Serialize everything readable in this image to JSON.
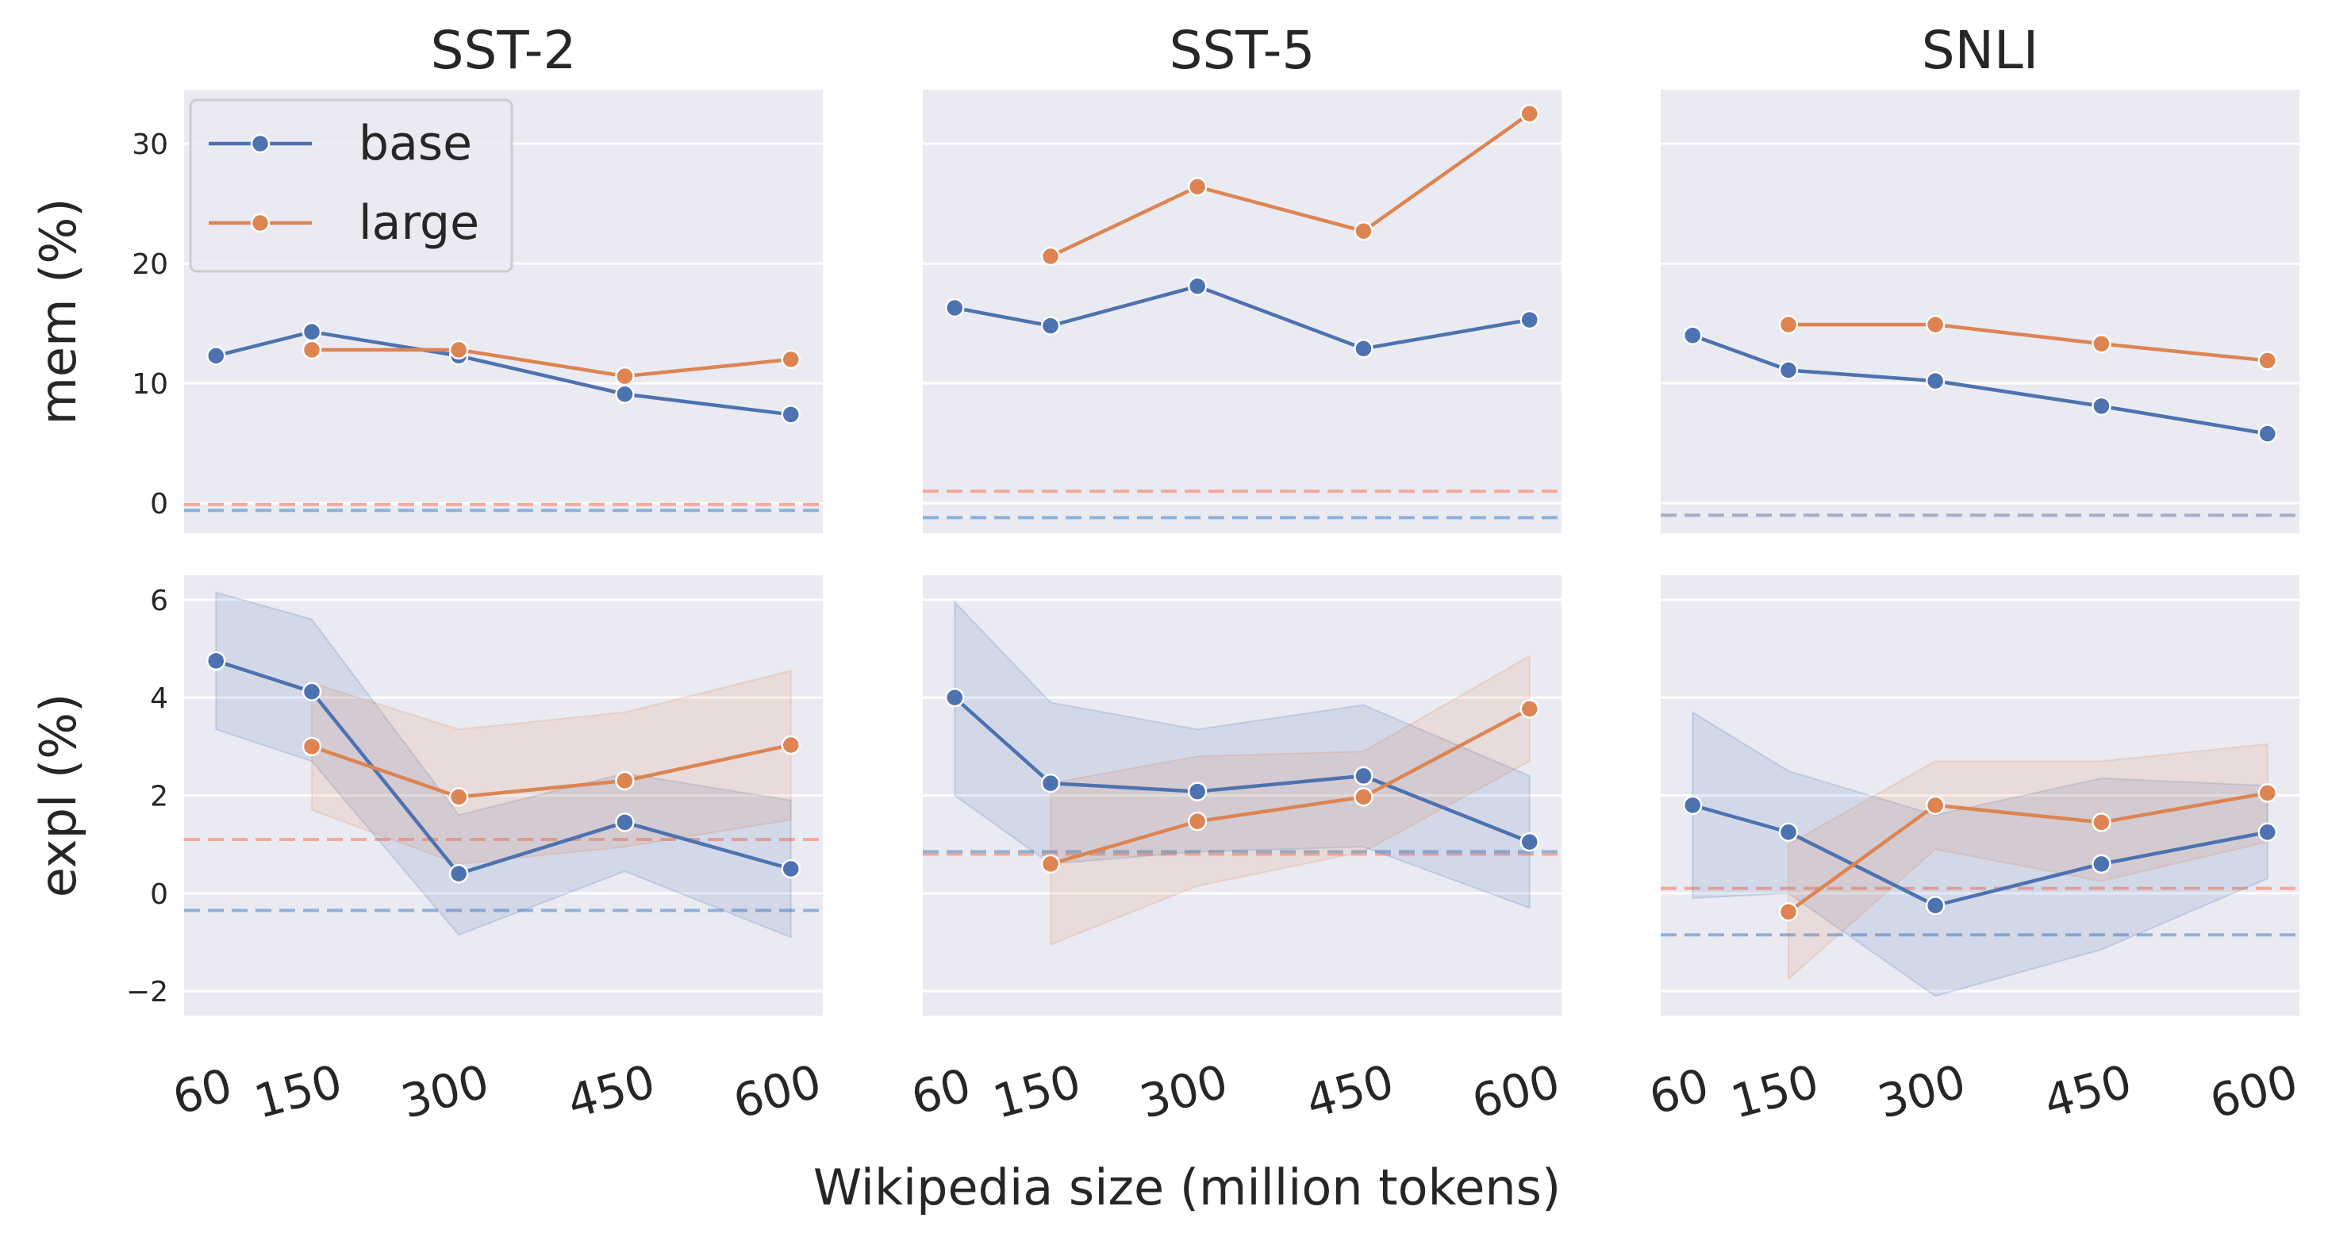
{
  "chart_data": {
    "type": "line",
    "layout": "2 rows x 3 columns grid",
    "xlabel": "Wikipedia size (million tokens)",
    "x": [
      60,
      150,
      300,
      450,
      600
    ],
    "x_tick_labels": [
      "60",
      "150",
      "300",
      "450",
      "600"
    ],
    "rows": [
      {
        "key": "mem",
        "ylabel": "mem (%)",
        "ylim": [
          -2.5,
          34.5
        ],
        "yticks": [
          0,
          10,
          20,
          30
        ],
        "ytick_labels": [
          "0",
          "10",
          "20",
          "30"
        ]
      },
      {
        "key": "expl",
        "ylabel": "expl (%)",
        "ylim": [
          -2.5,
          6.5
        ],
        "yticks": [
          -2,
          0,
          2,
          4,
          6
        ],
        "ytick_labels": [
          "−2",
          "0",
          "2",
          "4",
          "6"
        ]
      }
    ],
    "legend": {
      "location": "upper left of first panel",
      "entries": [
        {
          "name": "base",
          "color": "#4C72B0"
        },
        {
          "name": "large",
          "color": "#DD8452"
        }
      ]
    },
    "colors": {
      "base": "#4C72B0",
      "large": "#DD8452",
      "base_baseline": "#8FB0D8",
      "large_baseline": "#F5A89A",
      "panel_background": "#EAEAF2"
    },
    "panels": [
      {
        "title": "SST-2",
        "row": "mem",
        "series": [
          {
            "name": "base",
            "x": [
              60,
              150,
              300,
              450,
              600
            ],
            "values": [
              12.3,
              14.3,
              12.3,
              9.1,
              7.4
            ]
          },
          {
            "name": "large",
            "x": [
              150,
              300,
              450,
              600
            ],
            "values": [
              12.8,
              12.8,
              10.6,
              12.0
            ]
          }
        ],
        "baselines": {
          "base": -0.6,
          "large": -0.1
        }
      },
      {
        "title": "SST-5",
        "row": "mem",
        "series": [
          {
            "name": "base",
            "x": [
              60,
              150,
              300,
              450,
              600
            ],
            "values": [
              16.3,
              14.8,
              18.1,
              12.9,
              15.3
            ]
          },
          {
            "name": "large",
            "x": [
              150,
              300,
              450,
              600
            ],
            "values": [
              20.6,
              26.4,
              22.7,
              32.5
            ]
          }
        ],
        "baselines": {
          "base": -1.2,
          "large": 1.0
        }
      },
      {
        "title": "SNLI",
        "row": "mem",
        "series": [
          {
            "name": "base",
            "x": [
              60,
              150,
              300,
              450,
              600
            ],
            "values": [
              14.0,
              11.1,
              10.2,
              8.1,
              5.8
            ]
          },
          {
            "name": "large",
            "x": [
              150,
              300,
              450,
              600
            ],
            "values": [
              14.9,
              14.9,
              13.3,
              11.9
            ]
          }
        ],
        "baselines": {
          "base": -1.0,
          "large": -1.0
        }
      },
      {
        "title": "SST-2",
        "row": "expl",
        "series": [
          {
            "name": "base",
            "x": [
              60,
              150,
              300,
              450,
              600
            ],
            "values": [
              4.75,
              4.12,
              0.4,
              1.45,
              0.5
            ],
            "lower": [
              3.35,
              2.7,
              -0.85,
              0.45,
              -0.9
            ],
            "upper": [
              6.15,
              5.6,
              1.6,
              2.45,
              1.9
            ]
          },
          {
            "name": "large",
            "x": [
              150,
              300,
              450,
              600
            ],
            "values": [
              3.0,
              1.97,
              2.3,
              3.03
            ],
            "lower": [
              1.7,
              0.6,
              0.95,
              1.5
            ],
            "upper": [
              4.3,
              3.35,
              3.7,
              4.55
            ]
          }
        ],
        "baselines": {
          "base": -0.35,
          "large": 1.1
        }
      },
      {
        "title": "SST-5",
        "row": "expl",
        "series": [
          {
            "name": "base",
            "x": [
              60,
              150,
              300,
              450,
              600
            ],
            "values": [
              4.0,
              2.25,
              2.08,
              2.4,
              1.05
            ],
            "lower": [
              2.0,
              0.6,
              0.85,
              0.95,
              -0.3
            ],
            "upper": [
              5.95,
              3.9,
              3.35,
              3.85,
              2.4
            ]
          },
          {
            "name": "large",
            "x": [
              150,
              300,
              450,
              600
            ],
            "values": [
              0.6,
              1.47,
              1.97,
              3.77
            ],
            "lower": [
              -1.05,
              0.15,
              0.85,
              2.7
            ],
            "upper": [
              2.25,
              2.8,
              2.9,
              4.85
            ]
          }
        ],
        "baselines": {
          "base": 0.85,
          "large": 0.8
        }
      },
      {
        "title": "SNLI",
        "row": "expl",
        "series": [
          {
            "name": "base",
            "x": [
              60,
              150,
              300,
              450,
              600
            ],
            "values": [
              1.8,
              1.25,
              -0.25,
              0.6,
              1.25
            ],
            "lower": [
              -0.1,
              0.0,
              -2.1,
              -1.15,
              0.3
            ],
            "upper": [
              3.7,
              2.5,
              1.6,
              2.35,
              2.2
            ]
          },
          {
            "name": "large",
            "x": [
              150,
              300,
              450,
              600
            ],
            "values": [
              -0.38,
              1.8,
              1.45,
              2.05
            ],
            "lower": [
              -1.75,
              0.9,
              0.25,
              1.05
            ],
            "upper": [
              1.0,
              2.7,
              2.7,
              3.05
            ]
          }
        ],
        "baselines": {
          "base": -0.85,
          "large": 0.1
        }
      }
    ]
  }
}
